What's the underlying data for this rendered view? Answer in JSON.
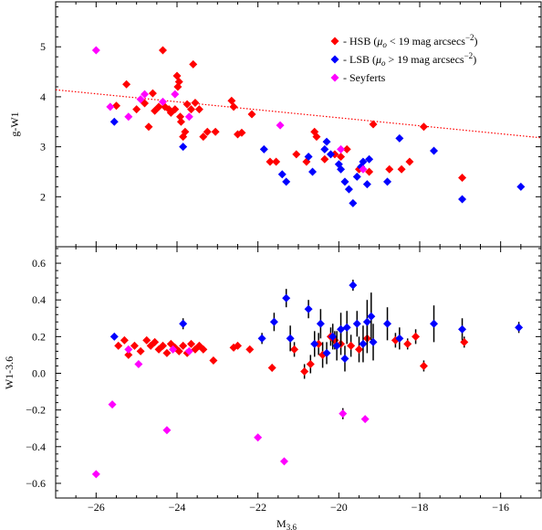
{
  "chart_data": {
    "type": "scatter",
    "shared_x": {
      "label_main": "M",
      "label_sub": "3.6",
      "lim": [
        -27,
        -15
      ],
      "ticks": [
        -26,
        -24,
        -22,
        -20,
        -18,
        -16
      ],
      "tick_labels": [
        "−26",
        "−24",
        "−22",
        "−20",
        "−18",
        "−16"
      ]
    },
    "colors": {
      "HSB": "#ff0000",
      "LSB": "#0000ff",
      "Seyferts": "#ff00ff",
      "fit_line": "#ff0000"
    },
    "panels": [
      {
        "id": "top",
        "ylabel": "g-W1",
        "ylim": [
          1.0,
          5.9
        ],
        "yticks": [
          2,
          3,
          4,
          5
        ],
        "ytick_labels": [
          "2",
          "3",
          "4",
          "5"
        ],
        "legend": {
          "position": "top-right",
          "entries": [
            {
              "series": "HSB",
              "prefix": "- HSB (",
              "mu": "μ",
              "mu_sub": "o",
              "rest": " < 19 mag arcsecs",
              "sup": "−2",
              "suffix": ")"
            },
            {
              "series": "LSB",
              "prefix": "- LSB (",
              "mu": "μ",
              "mu_sub": "o",
              "rest": " > 19 mag arcsecs",
              "sup": "−2",
              "suffix": ")"
            },
            {
              "series": "Seyferts",
              "prefix": "- Seyferts",
              "mu": "",
              "mu_sub": "",
              "rest": "",
              "sup": "",
              "suffix": ""
            }
          ]
        },
        "fit_line": {
          "x": [
            -27,
            -15
          ],
          "y": [
            4.14,
            3.18
          ]
        },
        "series": [
          {
            "name": "HSB",
            "points": [
              [
                -25.5,
                3.82
              ],
              [
                -25.25,
                4.25
              ],
              [
                -25,
                3.75
              ],
              [
                -24.8,
                3.87
              ],
              [
                -24.7,
                3.4
              ],
              [
                -24.6,
                4.07
              ],
              [
                -24.55,
                3.72
              ],
              [
                -24.45,
                3.8
              ],
              [
                -24.35,
                4.93
              ],
              [
                -24.3,
                3.8
              ],
              [
                -24.2,
                3.75
              ],
              [
                -24.15,
                3.68
              ],
              [
                -24.05,
                3.75
              ],
              [
                -24.0,
                4.42
              ],
              [
                -23.98,
                4.2
              ],
              [
                -23.95,
                4.3
              ],
              [
                -23.92,
                3.6
              ],
              [
                -23.9,
                3.5
              ],
              [
                -23.85,
                3.2
              ],
              [
                -23.8,
                3.3
              ],
              [
                -23.75,
                3.85
              ],
              [
                -23.65,
                3.75
              ],
              [
                -23.6,
                4.65
              ],
              [
                -23.55,
                3.88
              ],
              [
                -23.45,
                3.75
              ],
              [
                -23.35,
                3.2
              ],
              [
                -23.25,
                3.3
              ],
              [
                -23.05,
                3.3
              ],
              [
                -22.65,
                3.92
              ],
              [
                -22.6,
                3.8
              ],
              [
                -22.5,
                3.25
              ],
              [
                -22.4,
                3.28
              ],
              [
                -22.15,
                3.65
              ],
              [
                -21.7,
                2.7
              ],
              [
                -21.55,
                2.7
              ],
              [
                -21.05,
                2.85
              ],
              [
                -20.8,
                2.7
              ],
              [
                -20.6,
                3.3
              ],
              [
                -20.55,
                3.2
              ],
              [
                -20.35,
                2.75
              ],
              [
                -20.1,
                2.85
              ],
              [
                -19.95,
                2.8
              ],
              [
                -19.8,
                2.95
              ],
              [
                -19.5,
                2.55
              ],
              [
                -19.25,
                2.5
              ],
              [
                -19.15,
                3.45
              ],
              [
                -18.75,
                2.55
              ],
              [
                -18.45,
                2.55
              ],
              [
                -18.25,
                2.7
              ],
              [
                -17.9,
                3.4
              ],
              [
                -16.95,
                2.38
              ]
            ]
          },
          {
            "name": "LSB",
            "points": [
              [
                -25.55,
                3.5
              ],
              [
                -23.85,
                3.0
              ],
              [
                -21.85,
                2.95
              ],
              [
                -21.4,
                2.45
              ],
              [
                -21.3,
                2.3
              ],
              [
                -20.75,
                2.8
              ],
              [
                -20.65,
                2.5
              ],
              [
                -20.35,
                2.95
              ],
              [
                -20.3,
                3.1
              ],
              [
                -20.2,
                2.85
              ],
              [
                -20.0,
                2.65
              ],
              [
                -19.95,
                2.55
              ],
              [
                -19.85,
                2.3
              ],
              [
                -19.75,
                2.15
              ],
              [
                -19.65,
                1.87
              ],
              [
                -19.55,
                2.4
              ],
              [
                -19.45,
                2.6
              ],
              [
                -19.4,
                2.7
              ],
              [
                -19.3,
                2.25
              ],
              [
                -19.25,
                2.75
              ],
              [
                -18.8,
                2.3
              ],
              [
                -18.5,
                3.17
              ],
              [
                -17.65,
                2.92
              ],
              [
                -16.95,
                1.95
              ],
              [
                -15.5,
                2.2
              ]
            ]
          },
          {
            "name": "Seyferts",
            "points": [
              [
                -26.0,
                4.93
              ],
              [
                -25.65,
                3.8
              ],
              [
                -25.2,
                3.6
              ],
              [
                -24.9,
                3.95
              ],
              [
                -24.8,
                4.05
              ],
              [
                -24.35,
                3.9
              ],
              [
                -24.05,
                4.05
              ],
              [
                -23.7,
                3.6
              ],
              [
                -21.45,
                3.43
              ],
              [
                -19.95,
                2.95
              ],
              [
                -19.4,
                2.55
              ]
            ]
          }
        ]
      },
      {
        "id": "bottom",
        "ylabel": "W1-3.6",
        "ylim": [
          -0.68,
          0.69
        ],
        "yticks": [
          -0.6,
          -0.4,
          -0.2,
          0.0,
          0.2,
          0.4,
          0.6
        ],
        "ytick_labels": [
          "−0.6",
          "−0.4",
          "−0.2",
          "0.0",
          "0.2",
          "0.4",
          "0.6"
        ],
        "series": [
          {
            "name": "HSB",
            "points": [
              [
                -25.45,
                0.15,
                0.01
              ],
              [
                -25.3,
                0.18,
                0.01
              ],
              [
                -25.2,
                0.1,
                0.01
              ],
              [
                -25.05,
                0.15,
                0.01
              ],
              [
                -24.9,
                0.12,
                0.01
              ],
              [
                -24.75,
                0.18,
                0.01
              ],
              [
                -24.65,
                0.15,
                0.01
              ],
              [
                -24.55,
                0.17,
                0.01
              ],
              [
                -24.45,
                0.13,
                0.01
              ],
              [
                -24.35,
                0.15,
                0.01
              ],
              [
                -24.25,
                0.11,
                0.01
              ],
              [
                -24.15,
                0.16,
                0.01
              ],
              [
                -24.05,
                0.14,
                0.01
              ],
              [
                -23.95,
                0.12,
                0.01
              ],
              [
                -23.85,
                0.15,
                0.01
              ],
              [
                -23.75,
                0.11,
                0.01
              ],
              [
                -23.65,
                0.16,
                0.01
              ],
              [
                -23.55,
                0.13,
                0.01
              ],
              [
                -23.45,
                0.15,
                0.01
              ],
              [
                -23.35,
                0.13,
                0.01
              ],
              [
                -23.1,
                0.07,
                0.01
              ],
              [
                -22.6,
                0.14,
                0.01
              ],
              [
                -22.5,
                0.15,
                0.01
              ],
              [
                -22.2,
                0.13,
                0.01
              ],
              [
                -21.65,
                0.03,
                0.02
              ],
              [
                -21.1,
                0.13,
                0.04
              ],
              [
                -20.85,
                0.01,
                0.04
              ],
              [
                -20.7,
                0.05,
                0.05
              ],
              [
                -20.5,
                0.16,
                0.06
              ],
              [
                -20.4,
                0.1,
                0.07
              ],
              [
                -20.2,
                0.2,
                0.05
              ],
              [
                -20.1,
                0.18,
                0.05
              ],
              [
                -19.95,
                0.16,
                0.06
              ],
              [
                -19.7,
                0.15,
                0.06
              ],
              [
                -19.5,
                0.13,
                0.07
              ],
              [
                -19.3,
                0.19,
                0.08
              ],
              [
                -18.6,
                0.18,
                0.04
              ],
              [
                -18.3,
                0.16,
                0.03
              ],
              [
                -18.1,
                0.2,
                0.04
              ],
              [
                -17.9,
                0.04,
                0.03
              ],
              [
                -16.9,
                0.17,
                0.03
              ]
            ]
          },
          {
            "name": "LSB",
            "points": [
              [
                -25.55,
                0.2,
                0.01
              ],
              [
                -23.85,
                0.27,
                0.03
              ],
              [
                -21.9,
                0.19,
                0.03
              ],
              [
                -21.6,
                0.28,
                0.05
              ],
              [
                -21.3,
                0.41,
                0.05
              ],
              [
                -21.2,
                0.19,
                0.07
              ],
              [
                -20.75,
                0.35,
                0.05
              ],
              [
                -20.6,
                0.16,
                0.07
              ],
              [
                -20.45,
                0.27,
                0.08
              ],
              [
                -20.3,
                0.11,
                0.06
              ],
              [
                -20.15,
                0.2,
                0.07
              ],
              [
                -20.05,
                0.15,
                0.08
              ],
              [
                -19.95,
                0.24,
                0.09
              ],
              [
                -19.85,
                0.08,
                0.07
              ],
              [
                -19.8,
                0.25,
                0.09
              ],
              [
                -19.65,
                0.48,
                0.03
              ],
              [
                -19.55,
                0.27,
                0.07
              ],
              [
                -19.4,
                0.16,
                0.1
              ],
              [
                -19.3,
                0.28,
                0.12
              ],
              [
                -19.2,
                0.31,
                0.13
              ],
              [
                -19.15,
                0.17,
                0.1
              ],
              [
                -18.8,
                0.27,
                0.09
              ],
              [
                -18.5,
                0.19,
                0.06
              ],
              [
                -17.65,
                0.27,
                0.1
              ],
              [
                -16.95,
                0.24,
                0.06
              ],
              [
                -15.55,
                0.25,
                0.03
              ]
            ]
          },
          {
            "name": "Seyferts",
            "points": [
              [
                -26.0,
                -0.55,
                0.01
              ],
              [
                -25.6,
                -0.17,
                0.01
              ],
              [
                -25.2,
                0.13,
                0.01
              ],
              [
                -24.95,
                0.05,
                0.01
              ],
              [
                -24.25,
                -0.31,
                0.01
              ],
              [
                -24.1,
                0.13,
                0.01
              ],
              [
                -23.7,
                0.12,
                0.01
              ],
              [
                -22.0,
                -0.35,
                0.01
              ],
              [
                -21.35,
                -0.48,
                0.01
              ],
              [
                -19.9,
                -0.22,
                0.03
              ],
              [
                -19.35,
                -0.25,
                0.01
              ]
            ]
          }
        ]
      }
    ]
  }
}
